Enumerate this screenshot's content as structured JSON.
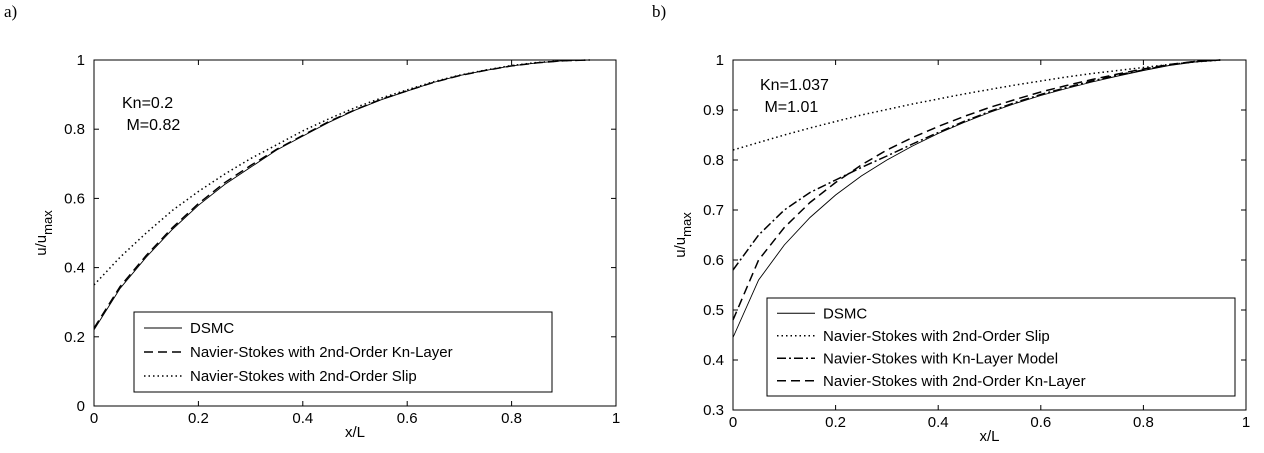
{
  "chart_data": [
    {
      "type": "line",
      "panel_label": "a)",
      "xlabel": "x/L",
      "ylabel": "u/u",
      "ylabel_sub": "max",
      "xlim": [
        0,
        1
      ],
      "ylim": [
        0,
        1
      ],
      "xticks": [
        0,
        0.2,
        0.4,
        0.6,
        0.8,
        1
      ],
      "xtick_labels": [
        "0",
        "0.2",
        "0.4",
        "0.6",
        "0.8",
        "1"
      ],
      "yticks": [
        0,
        0.2,
        0.4,
        0.6,
        0.8,
        1
      ],
      "ytick_labels": [
        "0",
        "0.2",
        "0.4",
        "0.6",
        "0.8",
        "1"
      ],
      "grid": false,
      "annotations": [
        "Kn=0.2",
        " M=0.82"
      ],
      "legend_position": "bottom-right",
      "x": [
        0,
        0.05,
        0.1,
        0.15,
        0.2,
        0.25,
        0.3,
        0.35,
        0.4,
        0.45,
        0.5,
        0.55,
        0.6,
        0.65,
        0.7,
        0.75,
        0.8,
        0.85,
        0.9,
        0.95
      ],
      "series": [
        {
          "name": "DSMC",
          "style": "solid",
          "values": [
            0.22,
            0.34,
            0.43,
            0.51,
            0.58,
            0.64,
            0.69,
            0.74,
            0.78,
            0.82,
            0.855,
            0.885,
            0.91,
            0.935,
            0.955,
            0.97,
            0.983,
            0.992,
            0.998,
            1.0
          ]
        },
        {
          "name": "Navier-Stokes with 2nd-Order Kn-Layer",
          "style": "dashed",
          "values": [
            0.225,
            0.345,
            0.435,
            0.515,
            0.585,
            0.645,
            0.695,
            0.742,
            0.782,
            0.822,
            0.856,
            0.886,
            0.911,
            0.935,
            0.955,
            0.97,
            0.983,
            0.992,
            0.998,
            1.0
          ]
        },
        {
          "name": "Navier-Stokes with 2nd-Order Slip",
          "style": "dotted",
          "values": [
            0.35,
            0.43,
            0.5,
            0.565,
            0.62,
            0.67,
            0.715,
            0.755,
            0.795,
            0.83,
            0.862,
            0.89,
            0.914,
            0.937,
            0.956,
            0.971,
            0.984,
            0.993,
            0.998,
            1.0
          ]
        }
      ]
    },
    {
      "type": "line",
      "panel_label": "b)",
      "xlabel": "x/L",
      "ylabel": "u/u",
      "ylabel_sub": "max",
      "xlim": [
        0,
        1
      ],
      "ylim": [
        0.3,
        1
      ],
      "xticks": [
        0,
        0.2,
        0.4,
        0.6,
        0.8,
        1
      ],
      "xtick_labels": [
        "0",
        "0.2",
        "0.4",
        "0.6",
        "0.8",
        "1"
      ],
      "yticks": [
        0.3,
        0.4,
        0.5,
        0.6,
        0.7,
        0.8,
        0.9,
        1
      ],
      "ytick_labels": [
        "0.3",
        "0.4",
        "0.5",
        "0.6",
        "0.7",
        "0.8",
        "0.9",
        "1"
      ],
      "grid": false,
      "annotations": [
        "Kn=1.037",
        " M=1.01"
      ],
      "legend_position": "bottom-right",
      "x": [
        0,
        0.05,
        0.1,
        0.15,
        0.2,
        0.25,
        0.3,
        0.35,
        0.4,
        0.45,
        0.5,
        0.55,
        0.6,
        0.65,
        0.7,
        0.75,
        0.8,
        0.85,
        0.9,
        0.95
      ],
      "series": [
        {
          "name": "DSMC",
          "style": "solid",
          "values": [
            0.445,
            0.56,
            0.63,
            0.685,
            0.73,
            0.768,
            0.8,
            0.828,
            0.853,
            0.875,
            0.895,
            0.913,
            0.929,
            0.943,
            0.956,
            0.968,
            0.979,
            0.989,
            0.996,
            1.0
          ]
        },
        {
          "name": "Navier-Stokes with 2nd-Order Slip",
          "style": "dotted",
          "values": [
            0.82,
            0.835,
            0.85,
            0.864,
            0.877,
            0.89,
            0.901,
            0.912,
            0.922,
            0.932,
            0.941,
            0.95,
            0.958,
            0.966,
            0.973,
            0.979,
            0.985,
            0.991,
            0.996,
            1.0
          ]
        },
        {
          "name": "Navier-Stokes with Kn-Layer Model",
          "style": "dashdot",
          "values": [
            0.58,
            0.65,
            0.7,
            0.735,
            0.76,
            0.785,
            0.808,
            0.832,
            0.855,
            0.877,
            0.897,
            0.915,
            0.931,
            0.945,
            0.958,
            0.97,
            0.98,
            0.99,
            0.997,
            1.0
          ]
        },
        {
          "name": "Navier-Stokes with 2nd-Order Kn-Layer",
          "style": "dashed",
          "values": [
            0.48,
            0.6,
            0.665,
            0.715,
            0.755,
            0.79,
            0.82,
            0.845,
            0.867,
            0.887,
            0.905,
            0.921,
            0.936,
            0.949,
            0.961,
            0.972,
            0.982,
            0.991,
            0.997,
            1.0
          ]
        }
      ]
    }
  ]
}
